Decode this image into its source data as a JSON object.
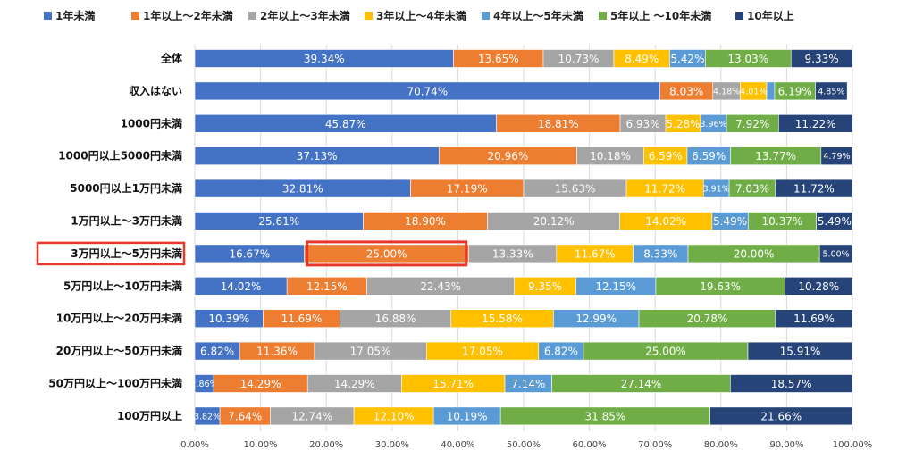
{
  "chart_data": {
    "type": "bar",
    "orientation": "horizontal",
    "stacked": "percent",
    "xlim": [
      0,
      100
    ],
    "xticks": [
      "0.00%",
      "10.00%",
      "20.00%",
      "30.00%",
      "40.00%",
      "50.00%",
      "60.00%",
      "70.00%",
      "80.00%",
      "90.00%",
      "100.00%"
    ],
    "legend_position": "top",
    "grid": true,
    "categories": [
      "全体",
      "収入はない",
      "1000円未満",
      "1000円以上5000円未満",
      "5000円以上1万円未満",
      "1万円以上～3万円未満",
      "3万円以上～5万円未満",
      "5万円以上～10万円未満",
      "10万円以上～20万円未満",
      "20万円以上～50万円未満",
      "50万円以上～100万円未満",
      "100万円以上"
    ],
    "highlighted_category": "3万円以上～5万円未満",
    "highlight_color": "#e8372a",
    "series": [
      {
        "name": "1年未満",
        "color": "#4472c4",
        "values": [
          39.34,
          70.74,
          45.87,
          37.13,
          32.81,
          25.61,
          16.67,
          14.02,
          10.39,
          6.82,
          2.86,
          3.82
        ]
      },
      {
        "name": "1年以上～2年未満",
        "color": "#ed7d31",
        "values": [
          13.65,
          8.03,
          18.81,
          20.96,
          17.19,
          18.9,
          25.0,
          12.15,
          11.69,
          11.36,
          14.29,
          7.64
        ]
      },
      {
        "name": "2年以上～3年未満",
        "color": "#a5a5a5",
        "values": [
          10.73,
          4.18,
          6.93,
          10.18,
          15.63,
          20.12,
          13.33,
          22.43,
          16.88,
          17.05,
          14.29,
          12.74
        ]
      },
      {
        "name": "3年以上～4年未満",
        "color": "#ffc000",
        "values": [
          8.49,
          4.01,
          5.28,
          6.59,
          11.72,
          14.02,
          11.67,
          9.35,
          15.58,
          17.05,
          15.71,
          12.1
        ]
      },
      {
        "name": "4年以上～5年未満",
        "color": "#5b9bd5",
        "values": [
          5.42,
          1.21,
          3.96,
          6.59,
          3.91,
          5.49,
          8.33,
          12.15,
          12.99,
          6.82,
          7.14,
          10.19
        ]
      },
      {
        "name": "5年以上 ～10年未満",
        "color": "#70ad47",
        "values": [
          13.03,
          6.19,
          7.92,
          13.77,
          7.03,
          10.37,
          20.0,
          19.63,
          20.78,
          25.0,
          27.14,
          31.85
        ]
      },
      {
        "name": "10年以上",
        "color": "#264478",
        "values": [
          9.33,
          4.85,
          11.22,
          4.79,
          11.72,
          5.49,
          5.0,
          10.28,
          11.69,
          15.91,
          18.57,
          21.66
        ]
      }
    ]
  }
}
